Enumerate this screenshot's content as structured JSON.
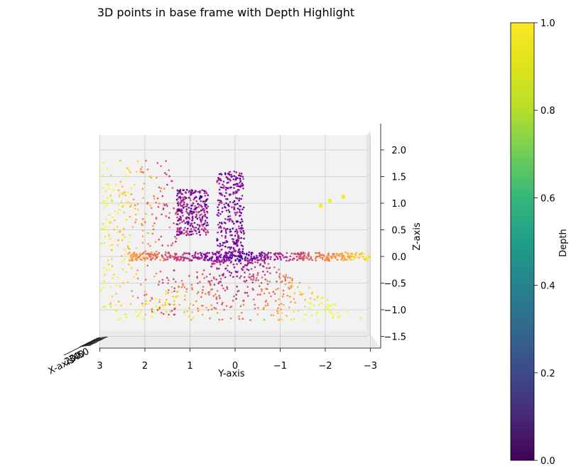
{
  "chart_data": {
    "type": "scatter",
    "projection": "3d",
    "title": "3D points in base frame with Depth Highlight",
    "xlabel": "X-axis",
    "ylabel": "Y-axis",
    "zlabel": "Z-axis",
    "y_ticks": [
      3,
      2,
      1,
      0,
      -1,
      -2,
      -3
    ],
    "y_tick_labels": [
      "3",
      "2",
      "1",
      "0",
      "−1",
      "−2",
      "−3"
    ],
    "z_ticks": [
      2.0,
      1.5,
      1.0,
      0.5,
      0.0,
      -0.5,
      -1.0,
      -1.5
    ],
    "z_tick_labels": [
      "2.0",
      "1.5",
      "1.0",
      "0.5",
      "0.0",
      "−0.5",
      "−1.0",
      "−1.5"
    ],
    "x_tick_labels_overlapping": [
      "20",
      "30",
      "40",
      "50"
    ],
    "ylim": [
      3.3,
      -3.3
    ],
    "zlim": [
      -1.7,
      2.3
    ],
    "grid": true,
    "colormap": "plasma",
    "colorbar": {
      "label": "Depth",
      "colormap": "viridis",
      "range": [
        0.0,
        1.0
      ],
      "ticks": [
        0.0,
        0.2,
        0.4,
        0.6,
        0.8,
        1.0
      ],
      "tick_labels": [
        "0.0",
        "0.2",
        "0.4",
        "0.6",
        "0.8",
        "1.0"
      ]
    },
    "structures": [
      {
        "name": "floor-plane",
        "y_range": [
          -3.0,
          2.4
        ],
        "z_range": [
          -0.08,
          0.08
        ],
        "depth": [
          0.05,
          0.85
        ]
      },
      {
        "name": "left-object",
        "y_range": [
          0.6,
          1.3
        ],
        "z_range": [
          0.4,
          1.25
        ],
        "depth": [
          0.05,
          0.55
        ]
      },
      {
        "name": "center-object",
        "y_range": [
          -0.2,
          0.4
        ],
        "z_range": [
          0.0,
          1.6
        ],
        "depth": [
          0.1,
          0.45
        ]
      },
      {
        "name": "left-wall-spray",
        "y_range": [
          1.3,
          3.0
        ],
        "z_range": [
          -1.1,
          1.8
        ],
        "depth": [
          0.4,
          1.0
        ]
      },
      {
        "name": "lower-fan",
        "y_range": [
          -2.4,
          3.0
        ],
        "z_range": [
          -1.2,
          -0.05
        ],
        "depth": [
          0.15,
          1.0
        ]
      }
    ]
  }
}
